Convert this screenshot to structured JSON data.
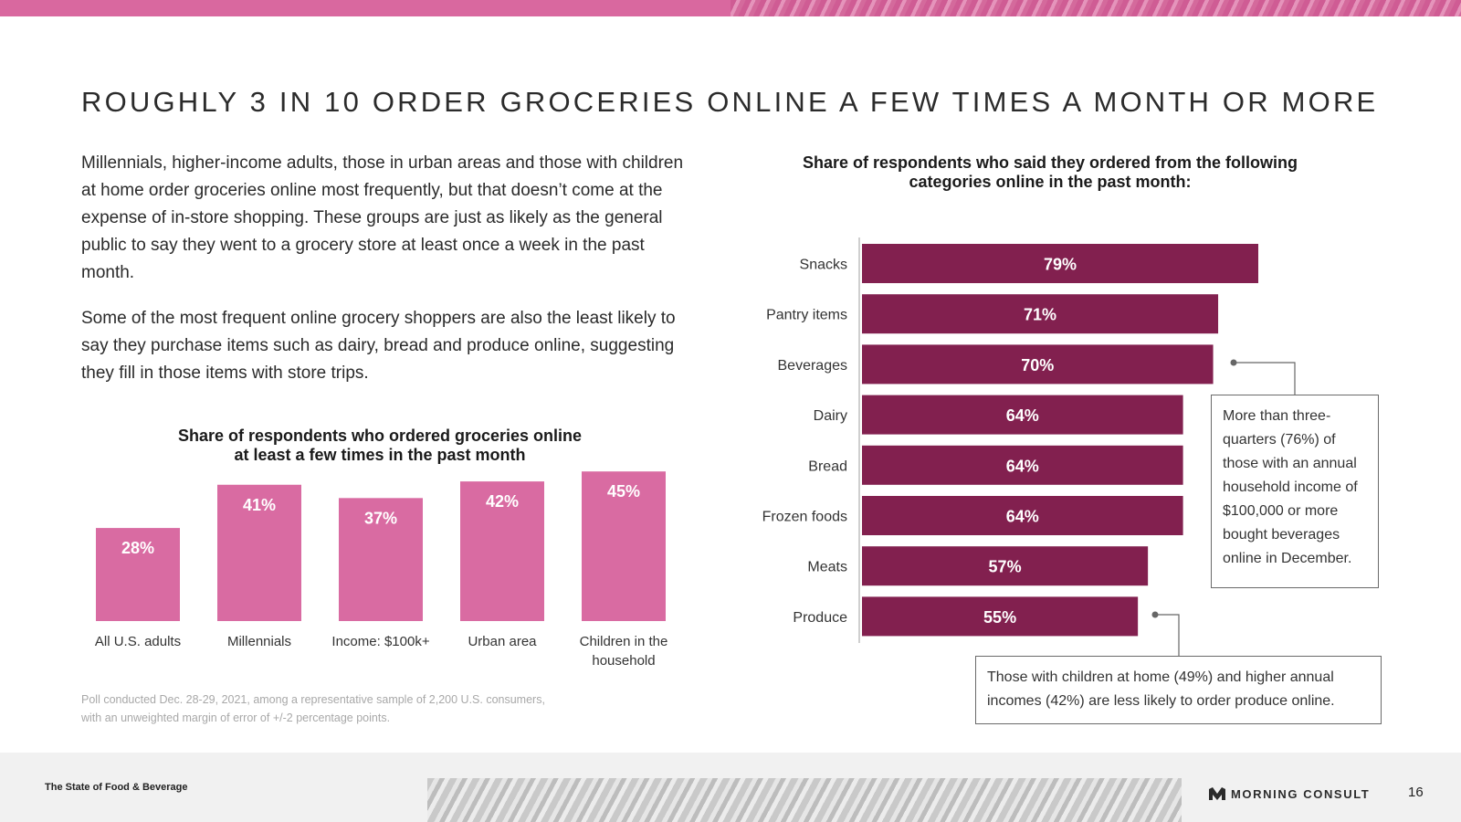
{
  "page": {
    "title": "ROUGHLY 3 IN 10 ORDER GROCERIES ONLINE A FEW TIMES A MONTH OR MORE",
    "paragraph1": "Millennials, higher-income adults, those in urban areas and those with children at home order groceries online most frequently, but that doesn’t come at the expense of in-store shopping. These groups are just as likely as the general public to say they went to a grocery store at least once a week in the past month.",
    "paragraph2": "Some of the most frequent online grocery shoppers are also the least likely to say they purchase items such as dairy, bread and produce online, suggesting they fill in those items with store trips.",
    "footnote_line1": "Poll conducted Dec. 28-29, 2021, among a representative sample of 2,200 U.S. consumers,",
    "footnote_line2": "with an unweighted margin of error of +/-2 percentage points.",
    "callout1": "More than three-quarters (76%) of those with an annual household income of $100,000 or more bought beverages online in December.",
    "callout2": "Those with children at home (49%) and higher annual incomes (42%) are less likely to order produce online."
  },
  "footer": {
    "report_name": "The State of Food & Beverage",
    "brand": "MORNING CONSULT",
    "page_number": "16"
  },
  "colors": {
    "accent_pink": "#d9689f",
    "bar_pink": "#d96ba2",
    "bar_plum": "#82204f"
  },
  "chart_data": [
    {
      "type": "bar",
      "orientation": "vertical",
      "title_line1": "Share of respondents who ordered groceries online",
      "title_line2": "at least a few times in the past month",
      "categories": [
        "All U.S. adults",
        "Millennials",
        "Income: $100k+",
        "Urban area",
        "Children in the household"
      ],
      "values": [
        28,
        41,
        37,
        42,
        45
      ],
      "value_suffix": "%",
      "ylim": [
        0,
        50
      ],
      "color": "#d96ba2",
      "grid": false
    },
    {
      "type": "bar",
      "orientation": "horizontal",
      "title_line1": "Share of respondents who said they ordered from the following",
      "title_line2": "categories online in the past month:",
      "categories": [
        "Snacks",
        "Pantry items",
        "Beverages",
        "Dairy",
        "Bread",
        "Frozen foods",
        "Meats",
        "Produce"
      ],
      "values": [
        79,
        71,
        70,
        64,
        64,
        64,
        57,
        55
      ],
      "value_suffix": "%",
      "xlim": [
        0,
        100
      ],
      "color": "#82204f",
      "grid": false
    }
  ]
}
